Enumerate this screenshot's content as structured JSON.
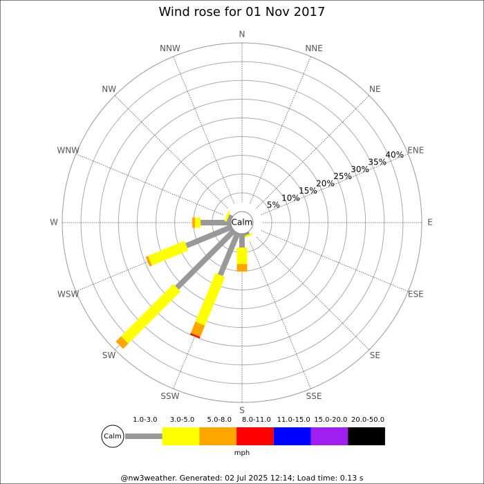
{
  "chart_data": {
    "type": "windrose",
    "title": "Wind rose for 01 Nov 2017",
    "directions": [
      "N",
      "NNE",
      "NE",
      "ENE",
      "E",
      "ESE",
      "SE",
      "SSE",
      "S",
      "SSW",
      "SW",
      "WSW",
      "W",
      "WNW",
      "NW",
      "NNW"
    ],
    "center_label": "Calm",
    "rlim": [
      0,
      45
    ],
    "rticks": [
      {
        "value": 5,
        "label": "5%"
      },
      {
        "value": 10,
        "label": "10%"
      },
      {
        "value": 15,
        "label": "15%"
      },
      {
        "value": 20,
        "label": "20%"
      },
      {
        "value": 25,
        "label": "25%"
      },
      {
        "value": 30,
        "label": "30%"
      },
      {
        "value": 35,
        "label": "35%"
      },
      {
        "value": 40,
        "label": "40%"
      }
    ],
    "series": [
      {
        "name": "1.0-3.0",
        "color": "#999999",
        "values": [
          0,
          0,
          0,
          0,
          0,
          0,
          0,
          0.6,
          3.7,
          12.2,
          21.6,
          13.1,
          8.1,
          1.0,
          0,
          0
        ]
      },
      {
        "name": "3.0-5.0",
        "color": "#ffff00",
        "values": [
          0,
          0,
          0,
          0,
          0,
          0,
          0,
          0.5,
          4.4,
          14.0,
          19.7,
          10.5,
          1.5,
          0.6,
          0,
          0
        ]
      },
      {
        "name": "5.0-8.0",
        "color": "#ffa500",
        "values": [
          0,
          0,
          0,
          0,
          0,
          0,
          0,
          0,
          2.0,
          3.3,
          2.0,
          0.7,
          0.7,
          0,
          0,
          0
        ]
      },
      {
        "name": "8.0-11.0",
        "color": "#ff0000",
        "values": [
          0,
          0,
          0,
          0,
          0,
          0,
          0,
          0,
          0,
          0.4,
          0,
          0,
          0,
          0,
          0,
          0
        ]
      },
      {
        "name": "11.0-15.0",
        "color": "#0000ff",
        "values": [
          0,
          0,
          0,
          0,
          0,
          0,
          0,
          0,
          0,
          0,
          0,
          0,
          0,
          0,
          0,
          0
        ]
      },
      {
        "name": "15.0-20.0",
        "color": "#a020f0",
        "values": [
          0,
          0,
          0,
          0,
          0,
          0,
          0,
          0,
          0,
          0,
          0,
          0,
          0,
          0,
          0,
          0
        ]
      },
      {
        "name": "20.0-50.0",
        "color": "#000000",
        "values": [
          0,
          0,
          0,
          0,
          0,
          0,
          0,
          0,
          0,
          0,
          0,
          0,
          0,
          0,
          0,
          0
        ]
      }
    ],
    "legend_unit": "mph",
    "footer": "@nw3weather.  Generated: 02 Jul 2025 12:14; Load time: 0.13 s"
  }
}
